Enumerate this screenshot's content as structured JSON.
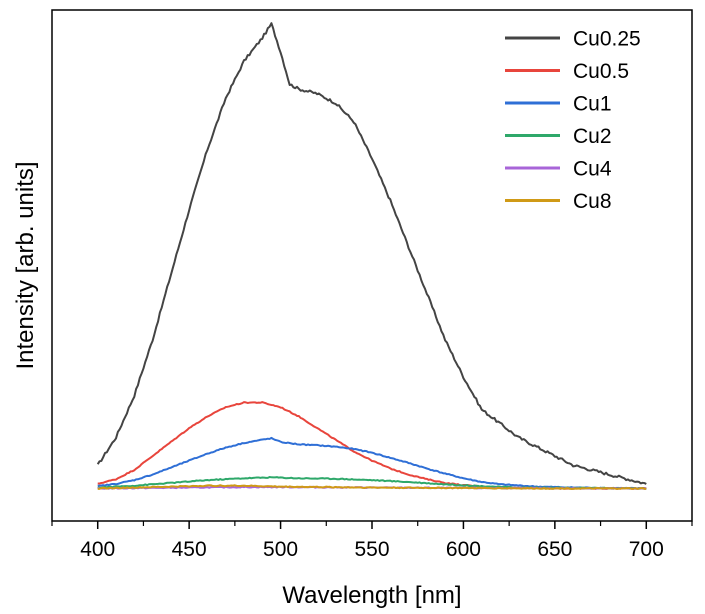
{
  "chart_data": {
    "type": "line",
    "title": "",
    "xlabel": "Wavelength [nm]",
    "ylabel": "Intensity [arb. units]",
    "xlim": [
      375,
      725
    ],
    "ylim": [
      -0.07,
      1.03
    ],
    "x_ticks": [
      400,
      450,
      500,
      550,
      600,
      650,
      700
    ],
    "y_ticks_shown": false,
    "legend_position": "top-right",
    "series": [
      {
        "name": "Cu0.25",
        "color": "#444444",
        "x": [
          400,
          410,
          420,
          430,
          440,
          450,
          460,
          470,
          480,
          490,
          495,
          500,
          505,
          510,
          520,
          530,
          540,
          550,
          560,
          570,
          580,
          590,
          600,
          610,
          620,
          630,
          640,
          650,
          660,
          670,
          680,
          690,
          700
        ],
        "y": [
          0.05,
          0.11,
          0.2,
          0.32,
          0.46,
          0.6,
          0.73,
          0.84,
          0.92,
          0.97,
          1.0,
          0.94,
          0.87,
          0.86,
          0.85,
          0.83,
          0.79,
          0.71,
          0.62,
          0.52,
          0.42,
          0.32,
          0.24,
          0.17,
          0.14,
          0.11,
          0.09,
          0.07,
          0.05,
          0.04,
          0.03,
          0.02,
          0.01
        ]
      },
      {
        "name": "Cu0.5",
        "color": "#e8453c",
        "x": [
          400,
          410,
          420,
          430,
          440,
          450,
          460,
          470,
          480,
          490,
          500,
          510,
          520,
          530,
          540,
          550,
          560,
          570,
          580,
          590,
          600,
          620,
          650,
          700
        ],
        "y": [
          0.01,
          0.02,
          0.04,
          0.07,
          0.1,
          0.13,
          0.155,
          0.175,
          0.185,
          0.185,
          0.175,
          0.155,
          0.13,
          0.105,
          0.08,
          0.06,
          0.043,
          0.03,
          0.02,
          0.012,
          0.007,
          0.002,
          0.0,
          0.0
        ]
      },
      {
        "name": "Cu1",
        "color": "#2f6fd6",
        "x": [
          400,
          410,
          420,
          430,
          440,
          450,
          460,
          470,
          480,
          490,
          495,
          500,
          510,
          520,
          530,
          540,
          550,
          560,
          570,
          580,
          590,
          600,
          610,
          620,
          640,
          660,
          700
        ],
        "y": [
          0.005,
          0.01,
          0.018,
          0.03,
          0.045,
          0.06,
          0.075,
          0.088,
          0.098,
          0.105,
          0.108,
          0.1,
          0.095,
          0.093,
          0.09,
          0.085,
          0.077,
          0.066,
          0.055,
          0.043,
          0.032,
          0.022,
          0.014,
          0.009,
          0.004,
          0.002,
          0.0
        ]
      },
      {
        "name": "Cu2",
        "color": "#2ea86a",
        "x": [
          400,
          420,
          440,
          460,
          480,
          495,
          510,
          530,
          550,
          570,
          590,
          610,
          630,
          700
        ],
        "y": [
          0.002,
          0.006,
          0.012,
          0.018,
          0.022,
          0.024,
          0.022,
          0.021,
          0.018,
          0.014,
          0.009,
          0.005,
          0.002,
          0.0
        ]
      },
      {
        "name": "Cu4",
        "color": "#a865d8",
        "x": [
          400,
          450,
          480,
          500,
          550,
          600,
          700
        ],
        "y": [
          0.0,
          0.002,
          0.003,
          0.003,
          0.002,
          0.001,
          0.0
        ]
      },
      {
        "name": "Cu8",
        "color": "#d09a16",
        "x": [
          400,
          430,
          460,
          480,
          500,
          550,
          600,
          650,
          700
        ],
        "y": [
          0.0,
          0.003,
          0.006,
          0.006,
          0.004,
          0.002,
          0.001,
          0.0,
          0.0
        ]
      }
    ]
  }
}
